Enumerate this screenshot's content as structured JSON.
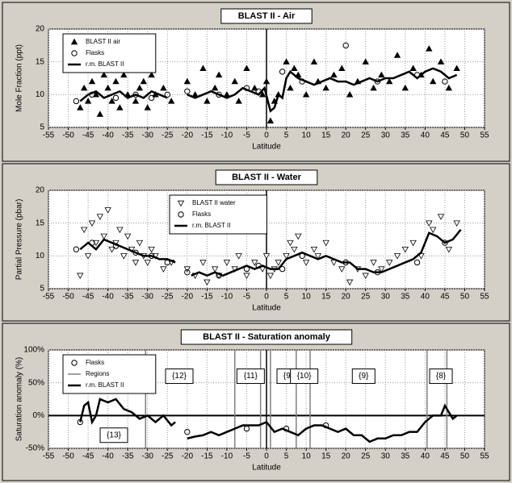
{
  "chart_data": [
    {
      "type": "scatter",
      "title": "BLAST II - Air",
      "x_label": "Latitude",
      "y_label": "Mole Fraction  (ppt)",
      "xlim": [
        -55,
        55
      ],
      "xticks": [
        -55,
        -50,
        -45,
        -40,
        -35,
        -30,
        -25,
        -20,
        -15,
        -10,
        -5,
        0,
        5,
        10,
        15,
        20,
        25,
        30,
        35,
        40,
        45,
        50,
        55
      ],
      "ylim": [
        5,
        20
      ],
      "yticks": [
        5,
        10,
        15,
        20
      ],
      "grid": true,
      "legend": "upper left",
      "reference_x": 0,
      "series": [
        {
          "name": "BLAST II air",
          "marker": "triangle-up",
          "color": "#000000",
          "x": [
            -47,
            -46,
            -45,
            -44,
            -43,
            -42,
            -41,
            -40,
            -39,
            -38,
            -37,
            -36,
            -35,
            -34,
            -33,
            -32,
            -31,
            -30,
            -29,
            -28,
            -26,
            -24,
            -20,
            -18,
            -16,
            -15,
            -13,
            -12,
            -10,
            -8,
            -7,
            -5,
            -3,
            -1,
            0,
            1,
            2,
            3,
            5,
            6,
            7,
            8,
            10,
            12,
            13,
            15,
            17,
            19,
            21,
            23,
            25,
            27,
            29,
            31,
            33,
            35,
            37,
            39,
            41,
            42,
            44,
            46,
            48
          ],
          "values": [
            8,
            11,
            9,
            12,
            10,
            7,
            13,
            11,
            9,
            12,
            8,
            13,
            10,
            14,
            9,
            11,
            12,
            8,
            13,
            10,
            11,
            9,
            12,
            10,
            14,
            9,
            11,
            13,
            10,
            12,
            9,
            14,
            11,
            10,
            12,
            6,
            9,
            10,
            15,
            11,
            14,
            13,
            10,
            15,
            12,
            11,
            13,
            14,
            10,
            12,
            15,
            11,
            13,
            12,
            16,
            11,
            14,
            13,
            17,
            12,
            15,
            11,
            14
          ]
        },
        {
          "name": "Flasks",
          "marker": "circle",
          "color": "#000000",
          "x": [
            -48,
            -44,
            -38,
            -33,
            -29,
            -25,
            -20,
            -12,
            -5,
            -2,
            4,
            9,
            20,
            28,
            38,
            45
          ],
          "values": [
            9,
            10,
            9.5,
            10,
            9.5,
            10,
            10.5,
            10,
            11,
            10.5,
            13.5,
            12,
            17.5,
            12,
            13,
            12
          ]
        },
        {
          "name": "r.m. BLAST II",
          "marker": "line",
          "color": "#000000",
          "x": [
            -47,
            -45,
            -43,
            -41,
            -39,
            -37,
            -35,
            -33,
            -31,
            -29,
            -27,
            -25,
            -22,
            -20,
            -18,
            -16,
            -14,
            -12,
            -10,
            -8,
            -6,
            -4,
            -2,
            -0.5,
            1,
            2,
            3,
            4,
            5,
            6,
            7,
            8,
            10,
            12,
            14,
            16,
            18,
            20,
            22,
            24,
            26,
            28,
            30,
            32,
            34,
            36,
            38,
            40,
            42,
            44,
            46,
            48
          ],
          "values": [
            9,
            10,
            10.5,
            9.5,
            10,
            10.5,
            9.5,
            10,
            9.5,
            10.5,
            10,
            9.5,
            null,
            10,
            9.5,
            10,
            10.5,
            10,
            9.5,
            10,
            11,
            10.5,
            10,
            11,
            7.5,
            8,
            10,
            9.5,
            12.5,
            13.5,
            13,
            12.5,
            12,
            11.5,
            12,
            12.5,
            12,
            12,
            11.5,
            12,
            12.5,
            12,
            12.5,
            12.5,
            13,
            13.5,
            12.5,
            13.5,
            14,
            13.5,
            12.5,
            13
          ]
        }
      ]
    },
    {
      "type": "scatter",
      "title": "BLAST II - Water",
      "x_label": "Latitude",
      "y_label": "Partial Pressure  (pbar)",
      "xlim": [
        -55,
        55
      ],
      "xticks": [
        -55,
        -50,
        -45,
        -40,
        -35,
        -30,
        -25,
        -20,
        -15,
        -10,
        -5,
        0,
        5,
        10,
        15,
        20,
        25,
        30,
        35,
        40,
        45,
        50,
        55
      ],
      "ylim": [
        5,
        20
      ],
      "yticks": [
        5,
        10,
        15,
        20
      ],
      "grid": true,
      "legend": "upper center",
      "reference_x": 0,
      "series": [
        {
          "name": "BLAST II water",
          "marker": "triangle-down",
          "color": "#000000",
          "x": [
            -47,
            -46,
            -45,
            -44,
            -43,
            -42,
            -41,
            -40,
            -39,
            -38,
            -37,
            -36,
            -35,
            -34,
            -33,
            -32,
            -31,
            -30,
            -29,
            -28,
            -26,
            -24,
            -20,
            -18,
            -16,
            -15,
            -13,
            -12,
            -10,
            -8,
            -7,
            -5,
            -3,
            -1,
            0,
            1,
            2,
            3,
            5,
            6,
            7,
            8,
            10,
            12,
            13,
            15,
            17,
            19,
            21,
            23,
            25,
            27,
            29,
            31,
            33,
            35,
            37,
            39,
            41,
            42,
            44,
            46,
            48
          ],
          "values": [
            7,
            14,
            10,
            15,
            12,
            16,
            13,
            17,
            11,
            12,
            14,
            10,
            13,
            11,
            9,
            12,
            10,
            9,
            11,
            10,
            8,
            9,
            8,
            7,
            9,
            6,
            8,
            7,
            9,
            8,
            10,
            7,
            9,
            8,
            10,
            7,
            8,
            9,
            10,
            12,
            11,
            13,
            9,
            11,
            10,
            12,
            9,
            8,
            6,
            8,
            7,
            9,
            8,
            9,
            10,
            11,
            12,
            10,
            15,
            14,
            16,
            11,
            15
          ]
        },
        {
          "name": "Flasks",
          "marker": "circle",
          "color": "#000000",
          "x": [
            -48,
            -44,
            -38,
            -33,
            -29,
            -25,
            -20,
            -12,
            -5,
            -2,
            4,
            9,
            20,
            28,
            38,
            45
          ],
          "values": [
            11,
            12,
            11.5,
            10.5,
            10,
            9,
            7.5,
            7,
            8,
            8.5,
            8,
            10,
            9,
            7.5,
            9,
            12
          ]
        },
        {
          "name": "r.m. BLAST II",
          "marker": "line",
          "color": "#000000",
          "x": [
            -47,
            -45,
            -43,
            -41,
            -39,
            -37,
            -35,
            -33,
            -31,
            -29,
            -27,
            -25,
            -23,
            -21,
            -19,
            -17,
            -15,
            -13,
            -11,
            -9,
            -7,
            -5,
            -3,
            -1,
            1,
            3,
            5,
            7,
            9,
            11,
            13,
            15,
            17,
            19,
            21,
            23,
            25,
            27,
            29,
            31,
            33,
            35,
            37,
            39,
            41,
            43,
            45,
            47,
            49
          ],
          "values": [
            11,
            12,
            11,
            12.5,
            12,
            11.5,
            11,
            10.5,
            10,
            10,
            9.5,
            9.5,
            9,
            null,
            7,
            7.5,
            7,
            7.5,
            7,
            7.5,
            8,
            8.5,
            8,
            8.5,
            8,
            8,
            9.5,
            10,
            10.5,
            10,
            9.5,
            10,
            9.5,
            9,
            9,
            8,
            8,
            7.5,
            7.5,
            8,
            8.5,
            9,
            9.5,
            10.5,
            13.5,
            13,
            12,
            12.5,
            14
          ]
        }
      ]
    },
    {
      "type": "scatter",
      "title": "BLAST II - Saturation anomaly",
      "x_label": "Latitude",
      "y_label": "Saturation anomaly  (%)",
      "xlim": [
        -55,
        55
      ],
      "xticks": [
        -55,
        -50,
        -45,
        -40,
        -35,
        -30,
        -25,
        -20,
        -15,
        -10,
        -5,
        0,
        5,
        10,
        15,
        20,
        25,
        30,
        35,
        40,
        45,
        50,
        55
      ],
      "ylim": [
        -50,
        100
      ],
      "yticks": [
        {
          "value": -50,
          "label": "-50%"
        },
        {
          "value": 0,
          "label": "0%"
        },
        {
          "value": 50,
          "label": "50%"
        },
        {
          "value": 100,
          "label": "100%"
        }
      ],
      "grid": true,
      "legend": "upper left",
      "reference_x": 0,
      "reference_y": 0,
      "series": [
        {
          "name": "Flasks",
          "marker": "circle",
          "color": "#000000",
          "x": [
            -47,
            -20,
            -5,
            5,
            15
          ],
          "values": [
            -10,
            -25,
            -20,
            -20,
            -15
          ]
        },
        {
          "name": "Regions",
          "marker": "region",
          "color": "#808080",
          "x": [
            -30.5,
            -8,
            -1.5,
            1,
            7.5,
            11,
            40.5,
            45.5
          ]
        },
        {
          "name": "r.m. BLAST II",
          "marker": "line",
          "color": "#000000",
          "x": [
            -47,
            -46,
            -45,
            -44,
            -43,
            -42,
            -40,
            -38,
            -36,
            -34,
            -32,
            -30,
            -28,
            -26,
            -24,
            -23,
            -21,
            -20,
            -18,
            -16,
            -14,
            -12,
            -10,
            -8,
            -6,
            -4,
            -2,
            0,
            2,
            4,
            6,
            8,
            10,
            12,
            14,
            16,
            18,
            20,
            22,
            24,
            26,
            28,
            30,
            32,
            34,
            36,
            38,
            40,
            42,
            44,
            45,
            46,
            47,
            48
          ],
          "values": [
            -10,
            15,
            20,
            -10,
            0,
            25,
            20,
            25,
            10,
            5,
            -5,
            0,
            -10,
            0,
            -15,
            -10,
            null,
            -35,
            -32,
            -30,
            -25,
            -30,
            -25,
            -20,
            -15,
            -15,
            -15,
            -10,
            -25,
            -20,
            -25,
            -30,
            -20,
            -15,
            -15,
            -20,
            -25,
            -20,
            -30,
            -30,
            -40,
            -35,
            -35,
            -30,
            -30,
            -25,
            -25,
            -10,
            0,
            0,
            15,
            5,
            -5,
            0
          ]
        }
      ],
      "annotations": [
        {
          "text": "{13}",
          "x": -38.5,
          "y": -30
        },
        {
          "text": "{12}",
          "x": -22,
          "y": 60
        },
        {
          "text": "{11}",
          "x": -4,
          "y": 60
        },
        {
          "text": "{9}",
          "x": 5.5,
          "y": 60
        },
        {
          "text": "{10}",
          "x": 9.5,
          "y": 60
        },
        {
          "text": "{9}",
          "x": 24.5,
          "y": 60
        },
        {
          "text": "{8}",
          "x": 44,
          "y": 60
        }
      ]
    }
  ]
}
